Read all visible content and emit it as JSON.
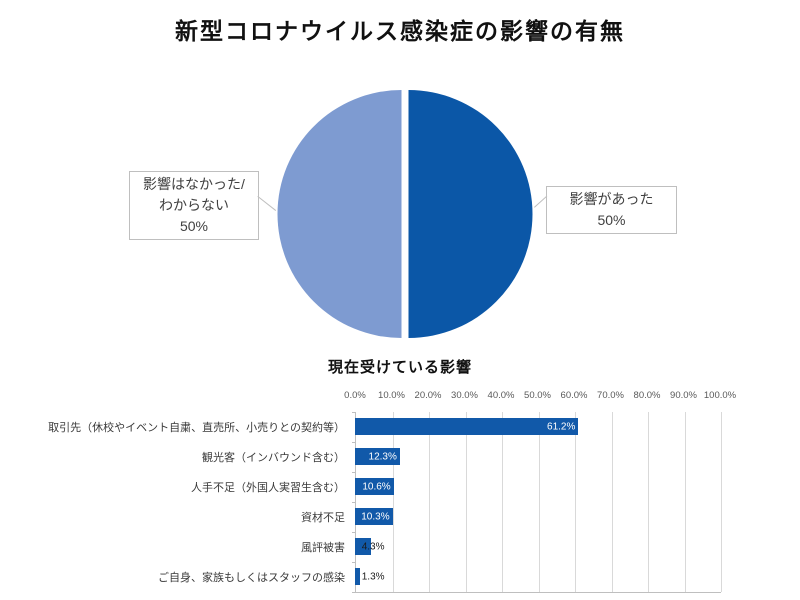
{
  "chart_data": [
    {
      "type": "pie",
      "title": "新型コロナウイルス感染症の影響の有無",
      "labels": [
        "影響があった",
        "影響はなかった/わからない"
      ],
      "values": [
        50,
        50
      ],
      "value_labels": [
        "50%",
        "50%"
      ],
      "colors": [
        "#0B57A7",
        "#7E9BD1"
      ],
      "legend_position": "none",
      "callouts": [
        {
          "side": "right",
          "lines": [
            "影響があった",
            "50%"
          ]
        },
        {
          "side": "left",
          "lines": [
            "影響はなかった/",
            "わからない",
            "50%"
          ]
        }
      ]
    },
    {
      "type": "bar",
      "orientation": "horizontal",
      "title": "現在受けている影響",
      "categories": [
        "取引先（休校やイベント自粛、直売所、小売りとの契約等）",
        "観光客（インバウンド含む）",
        "人手不足（外国人実習生含む）",
        "資材不足",
        "風評被害",
        "ご自身、家族もしくはスタッフの感染"
      ],
      "values": [
        61.2,
        12.3,
        10.6,
        10.3,
        4.3,
        1.3
      ],
      "value_labels": [
        "61.2%",
        "12.3%",
        "10.6%",
        "10.3%",
        "4.3%",
        "1.3%"
      ],
      "xlim": [
        0,
        100
      ],
      "x_ticks": [
        "0.0%",
        "10.0%",
        "20.0%",
        "30.0%",
        "40.0%",
        "50.0%",
        "60.0%",
        "70.0%",
        "80.0%",
        "90.0%",
        "100.0%"
      ],
      "grid": true,
      "bar_color": "#1159A9",
      "colors": {
        "gridline": "#D9D9D9",
        "axis_line": "#BFBFBF",
        "tick_text": "#595959",
        "category_text": "#3a3a3a",
        "value_text_inside": "#ffffff",
        "value_text_outside": "#1a1a1a"
      }
    }
  ]
}
